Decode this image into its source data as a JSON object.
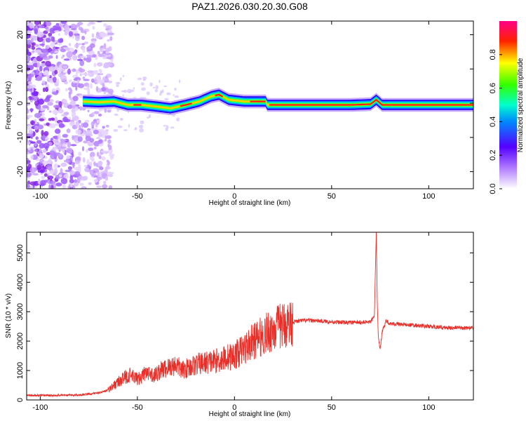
{
  "title": "PAZ1.2026.030.20.30.G08",
  "chart_data": [
    {
      "type": "heatmap",
      "xlabel": "Height of straight line (km)",
      "ylabel": "Frequency (Hz)",
      "xlim": [
        -107,
        123
      ],
      "ylim": [
        -25,
        24
      ],
      "xticks": [
        -100,
        -50,
        0,
        50,
        100
      ],
      "yticks": [
        -20,
        -10,
        0,
        10,
        20
      ],
      "colorbar": {
        "label": "Normalized spectral amplitude",
        "range": [
          0,
          1
        ],
        "ticks": [
          "0.0",
          "0.2",
          "0.4",
          "0.6",
          "0.8"
        ],
        "colormap": [
          "#ffffff",
          "#7f00ff",
          "#0000ff",
          "#00ffff",
          "#00ff00",
          "#ffff00",
          "#ff0000",
          "#ff0080"
        ]
      },
      "ridge": {
        "x": [
          -78,
          -70,
          -62,
          -55,
          -48,
          -40,
          -33,
          -25,
          -18,
          -12,
          -8,
          -3,
          5,
          12,
          16,
          17,
          40,
          60,
          70,
          73,
          76,
          80,
          100,
          123
        ],
        "y": [
          0.5,
          0.3,
          0.5,
          -0.5,
          -0.5,
          -1.0,
          -1.5,
          -0.5,
          0.5,
          2.0,
          2.5,
          1.0,
          0.5,
          0.5,
          0.5,
          -0.5,
          -0.5,
          -0.5,
          -0.3,
          1.0,
          -0.5,
          -0.5,
          -0.5,
          -0.5
        ]
      },
      "noise_region_x": [
        -107,
        -63
      ]
    },
    {
      "type": "line",
      "xlabel": "Height of straight line (km)",
      "ylabel": "SNR (10 * v/v)",
      "xlim": [
        -107,
        123
      ],
      "ylim": [
        0,
        5700
      ],
      "xticks": [
        -100,
        -50,
        0,
        50,
        100
      ],
      "yticks": [
        0,
        1000,
        2000,
        3000,
        4000,
        5000
      ],
      "color": "#e8302a",
      "series": [
        {
          "x": [
            -107,
            -90,
            -80,
            -72,
            -66,
            -62,
            -58,
            -54,
            -50,
            -46,
            -42,
            -38,
            -34,
            -30,
            -27,
            -24,
            -20,
            -16,
            -12,
            -8,
            -4,
            0,
            5,
            10,
            15,
            20,
            25,
            30,
            35,
            40,
            45,
            50,
            55,
            60,
            65,
            70,
            72,
            73,
            73.5,
            74,
            75,
            76,
            78,
            80,
            90,
            100,
            110,
            123
          ],
          "y": [
            150,
            160,
            170,
            220,
            300,
            500,
            700,
            850,
            700,
            900,
            800,
            1000,
            1100,
            1200,
            1000,
            1100,
            1200,
            1250,
            1300,
            1350,
            1450,
            1500,
            1750,
            2000,
            2200,
            2400,
            2550,
            2650,
            2700,
            2700,
            2680,
            2650,
            2640,
            2630,
            2640,
            2650,
            2800,
            5700,
            3400,
            2200,
            1700,
            2300,
            2700,
            2600,
            2550,
            2500,
            2450,
            2450
          ]
        }
      ]
    }
  ]
}
